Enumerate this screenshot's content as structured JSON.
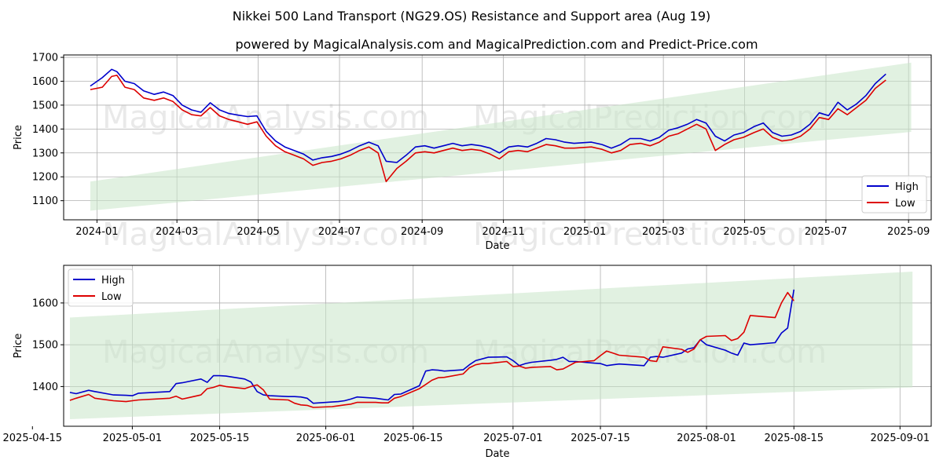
{
  "title": "Nikkei 500 Land Transport (NG29.OS) Resistance and Support area (Aug 19)",
  "subtitle": "powered by MagicalAnalysis.com and MagicalPrediction.com and Predict-Price.com",
  "watermarks": [
    "MagicalAnalysis.com",
    "MagicalPrediction.com"
  ],
  "colors": {
    "high": "#0000cc",
    "low": "#dd0000",
    "band": "#c8e6c9"
  },
  "chart_data": [
    {
      "type": "line",
      "name": "full-range",
      "xlabel": "Date",
      "ylabel": "Price",
      "xlim": [
        "2023-12-07",
        "2025-09-18"
      ],
      "ylim": [
        1020,
        1710
      ],
      "xticks": [
        "2024-01",
        "2024-03",
        "2024-05",
        "2024-07",
        "2024-09",
        "2024-11",
        "2025-01",
        "2025-03",
        "2025-05",
        "2025-07",
        "2025-09"
      ],
      "yticks": [
        1100,
        1200,
        1300,
        1400,
        1500,
        1600,
        1700
      ],
      "grid": true,
      "legend": {
        "position": "lower-right",
        "entries": [
          "High",
          "Low"
        ]
      },
      "band": {
        "x": [
          "2023-12-27",
          "2025-09-03"
        ],
        "upper": [
          1180,
          1678
        ],
        "lower": [
          1058,
          1388
        ]
      },
      "series": [
        {
          "name": "High",
          "x": [
            "2023-12-27",
            "2024-01-05",
            "2024-01-12",
            "2024-01-16",
            "2024-01-22",
            "2024-01-29",
            "2024-02-05",
            "2024-02-13",
            "2024-02-20",
            "2024-02-27",
            "2024-03-05",
            "2024-03-12",
            "2024-03-19",
            "2024-03-26",
            "2024-04-02",
            "2024-04-09",
            "2024-04-16",
            "2024-04-23",
            "2024-04-30",
            "2024-05-07",
            "2024-05-14",
            "2024-05-21",
            "2024-05-28",
            "2024-06-04",
            "2024-06-11",
            "2024-06-18",
            "2024-06-25",
            "2024-07-02",
            "2024-07-09",
            "2024-07-16",
            "2024-07-23",
            "2024-07-30",
            "2024-08-05",
            "2024-08-13",
            "2024-08-20",
            "2024-08-27",
            "2024-09-03",
            "2024-09-10",
            "2024-09-17",
            "2024-09-24",
            "2024-10-01",
            "2024-10-08",
            "2024-10-15",
            "2024-10-22",
            "2024-10-29",
            "2024-11-05",
            "2024-11-12",
            "2024-11-19",
            "2024-11-26",
            "2024-12-03",
            "2024-12-10",
            "2024-12-17",
            "2024-12-24",
            "2025-01-06",
            "2025-01-14",
            "2025-01-21",
            "2025-01-28",
            "2025-02-04",
            "2025-02-12",
            "2025-02-19",
            "2025-02-26",
            "2025-03-05",
            "2025-03-12",
            "2025-03-19",
            "2025-03-26",
            "2025-04-02",
            "2025-04-09",
            "2025-04-16",
            "2025-04-23",
            "2025-04-30",
            "2025-05-08",
            "2025-05-15",
            "2025-05-22",
            "2025-05-29",
            "2025-06-05",
            "2025-06-12",
            "2025-06-19",
            "2025-06-26",
            "2025-07-03",
            "2025-07-10",
            "2025-07-17",
            "2025-07-24",
            "2025-07-31",
            "2025-08-07",
            "2025-08-15"
          ],
          "values": [
            1580,
            1615,
            1650,
            1640,
            1600,
            1590,
            1560,
            1545,
            1555,
            1540,
            1500,
            1480,
            1470,
            1510,
            1480,
            1465,
            1458,
            1452,
            1455,
            1390,
            1350,
            1325,
            1310,
            1295,
            1270,
            1280,
            1285,
            1295,
            1310,
            1330,
            1345,
            1330,
            1265,
            1260,
            1290,
            1325,
            1330,
            1320,
            1330,
            1340,
            1330,
            1335,
            1330,
            1320,
            1300,
            1325,
            1330,
            1325,
            1340,
            1360,
            1355,
            1345,
            1340,
            1345,
            1335,
            1320,
            1335,
            1360,
            1360,
            1350,
            1365,
            1395,
            1405,
            1420,
            1440,
            1425,
            1370,
            1350,
            1375,
            1385,
            1410,
            1425,
            1385,
            1370,
            1375,
            1390,
            1420,
            1468,
            1456,
            1512,
            1480,
            1505,
            1540,
            1590,
            1630
          ]
        },
        {
          "name": "Low",
          "x": [
            "2023-12-27",
            "2024-01-05",
            "2024-01-12",
            "2024-01-16",
            "2024-01-22",
            "2024-01-29",
            "2024-02-05",
            "2024-02-13",
            "2024-02-20",
            "2024-02-27",
            "2024-03-05",
            "2024-03-12",
            "2024-03-19",
            "2024-03-26",
            "2024-04-02",
            "2024-04-09",
            "2024-04-16",
            "2024-04-23",
            "2024-04-30",
            "2024-05-07",
            "2024-05-14",
            "2024-05-21",
            "2024-05-28",
            "2024-06-04",
            "2024-06-11",
            "2024-06-18",
            "2024-06-25",
            "2024-07-02",
            "2024-07-09",
            "2024-07-16",
            "2024-07-23",
            "2024-07-30",
            "2024-08-05",
            "2024-08-13",
            "2024-08-20",
            "2024-08-27",
            "2024-09-03",
            "2024-09-10",
            "2024-09-17",
            "2024-09-24",
            "2024-10-01",
            "2024-10-08",
            "2024-10-15",
            "2024-10-22",
            "2024-10-29",
            "2024-11-05",
            "2024-11-12",
            "2024-11-19",
            "2024-11-26",
            "2024-12-03",
            "2024-12-10",
            "2024-12-17",
            "2024-12-24",
            "2025-01-06",
            "2025-01-14",
            "2025-01-21",
            "2025-01-28",
            "2025-02-04",
            "2025-02-12",
            "2025-02-19",
            "2025-02-26",
            "2025-03-05",
            "2025-03-12",
            "2025-03-19",
            "2025-03-26",
            "2025-04-02",
            "2025-04-09",
            "2025-04-16",
            "2025-04-23",
            "2025-04-30",
            "2025-05-08",
            "2025-05-15",
            "2025-05-22",
            "2025-05-29",
            "2025-06-05",
            "2025-06-12",
            "2025-06-19",
            "2025-06-26",
            "2025-07-03",
            "2025-07-10",
            "2025-07-17",
            "2025-07-24",
            "2025-07-31",
            "2025-08-07",
            "2025-08-15"
          ],
          "values": [
            1565,
            1575,
            1620,
            1625,
            1575,
            1565,
            1530,
            1520,
            1530,
            1515,
            1480,
            1460,
            1455,
            1490,
            1455,
            1440,
            1430,
            1420,
            1430,
            1370,
            1330,
            1305,
            1290,
            1275,
            1248,
            1260,
            1265,
            1275,
            1290,
            1310,
            1325,
            1300,
            1180,
            1235,
            1265,
            1300,
            1305,
            1300,
            1310,
            1320,
            1310,
            1315,
            1310,
            1295,
            1275,
            1305,
            1310,
            1305,
            1320,
            1335,
            1330,
            1320,
            1320,
            1325,
            1315,
            1300,
            1310,
            1335,
            1340,
            1330,
            1345,
            1370,
            1380,
            1400,
            1420,
            1400,
            1310,
            1335,
            1355,
            1365,
            1385,
            1400,
            1365,
            1350,
            1355,
            1370,
            1400,
            1448,
            1440,
            1485,
            1460,
            1490,
            1520,
            1570,
            1605
          ]
        }
      ]
    },
    {
      "type": "line",
      "name": "zoomed-recent",
      "xlabel": "Date",
      "ylabel": "Price",
      "xlim": [
        "2025-04-20",
        "2025-09-06"
      ],
      "ylim": [
        1305,
        1690
      ],
      "xticks": [
        "2025-04-15",
        "2025-05-01",
        "2025-05-15",
        "2025-06-01",
        "2025-06-15",
        "2025-07-01",
        "2025-07-15",
        "2025-08-01",
        "2025-08-15",
        "2025-09-01"
      ],
      "yticks": [
        1400,
        1500,
        1600
      ],
      "grid": true,
      "legend": {
        "position": "upper-left",
        "entries": [
          "High",
          "Low"
        ]
      },
      "band": {
        "x": [
          "2025-04-21",
          "2025-09-03"
        ],
        "upper": [
          1565,
          1675
        ],
        "lower": [
          1322,
          1398
        ]
      },
      "series": [
        {
          "name": "High",
          "x": [
            "2025-04-21",
            "2025-04-22",
            "2025-04-24",
            "2025-04-25",
            "2025-04-28",
            "2025-04-30",
            "2025-05-01",
            "2025-05-02",
            "2025-05-07",
            "2025-05-08",
            "2025-05-09",
            "2025-05-12",
            "2025-05-13",
            "2025-05-14",
            "2025-05-15",
            "2025-05-16",
            "2025-05-19",
            "2025-05-20",
            "2025-05-21",
            "2025-05-22",
            "2025-05-23",
            "2025-05-26",
            "2025-05-27",
            "2025-05-28",
            "2025-05-29",
            "2025-05-30",
            "2025-06-02",
            "2025-06-03",
            "2025-06-04",
            "2025-06-05",
            "2025-06-06",
            "2025-06-09",
            "2025-06-10",
            "2025-06-11",
            "2025-06-12",
            "2025-06-13",
            "2025-06-16",
            "2025-06-17",
            "2025-06-18",
            "2025-06-19",
            "2025-06-20",
            "2025-06-23",
            "2025-06-24",
            "2025-06-25",
            "2025-06-26",
            "2025-06-27",
            "2025-06-30",
            "2025-07-01",
            "2025-07-02",
            "2025-07-03",
            "2025-07-04",
            "2025-07-07",
            "2025-07-08",
            "2025-07-09",
            "2025-07-10",
            "2025-07-11",
            "2025-07-14",
            "2025-07-15",
            "2025-07-16",
            "2025-07-17",
            "2025-07-18",
            "2025-07-22",
            "2025-07-23",
            "2025-07-24",
            "2025-07-25",
            "2025-07-28",
            "2025-07-29",
            "2025-07-30",
            "2025-07-31",
            "2025-08-01",
            "2025-08-04",
            "2025-08-05",
            "2025-08-06",
            "2025-08-07",
            "2025-08-08",
            "2025-08-12",
            "2025-08-13",
            "2025-08-14",
            "2025-08-15"
          ],
          "values": [
            1386,
            1383,
            1391,
            1388,
            1380,
            1379,
            1378,
            1384,
            1388,
            1407,
            1409,
            1418,
            1410,
            1426,
            1426,
            1425,
            1418,
            1411,
            1388,
            1380,
            1378,
            1376,
            1376,
            1375,
            1372,
            1360,
            1363,
            1364,
            1366,
            1370,
            1375,
            1372,
            1370,
            1368,
            1381,
            1382,
            1402,
            1437,
            1440,
            1439,
            1437,
            1440,
            1452,
            1462,
            1466,
            1470,
            1471,
            1462,
            1450,
            1455,
            1458,
            1463,
            1465,
            1470,
            1460,
            1460,
            1456,
            1455,
            1450,
            1452,
            1454,
            1450,
            1470,
            1472,
            1470,
            1480,
            1490,
            1493,
            1512,
            1500,
            1487,
            1480,
            1475,
            1504,
            1500,
            1505,
            1528,
            1540,
            1632
          ]
        },
        {
          "name": "Low",
          "x": [
            "2025-04-21",
            "2025-04-22",
            "2025-04-24",
            "2025-04-25",
            "2025-04-28",
            "2025-04-30",
            "2025-05-01",
            "2025-05-02",
            "2025-05-07",
            "2025-05-08",
            "2025-05-09",
            "2025-05-12",
            "2025-05-13",
            "2025-05-14",
            "2025-05-15",
            "2025-05-16",
            "2025-05-19",
            "2025-05-20",
            "2025-05-21",
            "2025-05-22",
            "2025-05-23",
            "2025-05-26",
            "2025-05-27",
            "2025-05-28",
            "2025-05-29",
            "2025-05-30",
            "2025-06-02",
            "2025-06-03",
            "2025-06-04",
            "2025-06-05",
            "2025-06-06",
            "2025-06-09",
            "2025-06-10",
            "2025-06-11",
            "2025-06-12",
            "2025-06-13",
            "2025-06-16",
            "2025-06-17",
            "2025-06-18",
            "2025-06-19",
            "2025-06-20",
            "2025-06-23",
            "2025-06-24",
            "2025-06-25",
            "2025-06-26",
            "2025-06-27",
            "2025-06-30",
            "2025-07-01",
            "2025-07-02",
            "2025-07-03",
            "2025-07-04",
            "2025-07-07",
            "2025-07-08",
            "2025-07-09",
            "2025-07-10",
            "2025-07-11",
            "2025-07-14",
            "2025-07-15",
            "2025-07-16",
            "2025-07-17",
            "2025-07-18",
            "2025-07-22",
            "2025-07-23",
            "2025-07-24",
            "2025-07-25",
            "2025-07-28",
            "2025-07-29",
            "2025-07-30",
            "2025-07-31",
            "2025-08-01",
            "2025-08-04",
            "2025-08-05",
            "2025-08-06",
            "2025-08-07",
            "2025-08-08",
            "2025-08-12",
            "2025-08-13",
            "2025-08-14",
            "2025-08-15"
          ],
          "values": [
            1367,
            1372,
            1381,
            1372,
            1366,
            1364,
            1366,
            1368,
            1372,
            1377,
            1370,
            1380,
            1395,
            1398,
            1403,
            1400,
            1395,
            1400,
            1404,
            1392,
            1370,
            1368,
            1360,
            1356,
            1355,
            1350,
            1352,
            1354,
            1356,
            1358,
            1362,
            1362,
            1361,
            1361,
            1372,
            1376,
            1395,
            1405,
            1415,
            1421,
            1422,
            1430,
            1445,
            1452,
            1455,
            1455,
            1460,
            1448,
            1449,
            1444,
            1446,
            1448,
            1440,
            1442,
            1450,
            1458,
            1462,
            1474,
            1485,
            1480,
            1475,
            1470,
            1462,
            1460,
            1495,
            1489,
            1482,
            1490,
            1512,
            1520,
            1522,
            1510,
            1515,
            1530,
            1570,
            1565,
            1600,
            1625,
            1605
          ]
        }
      ]
    }
  ]
}
